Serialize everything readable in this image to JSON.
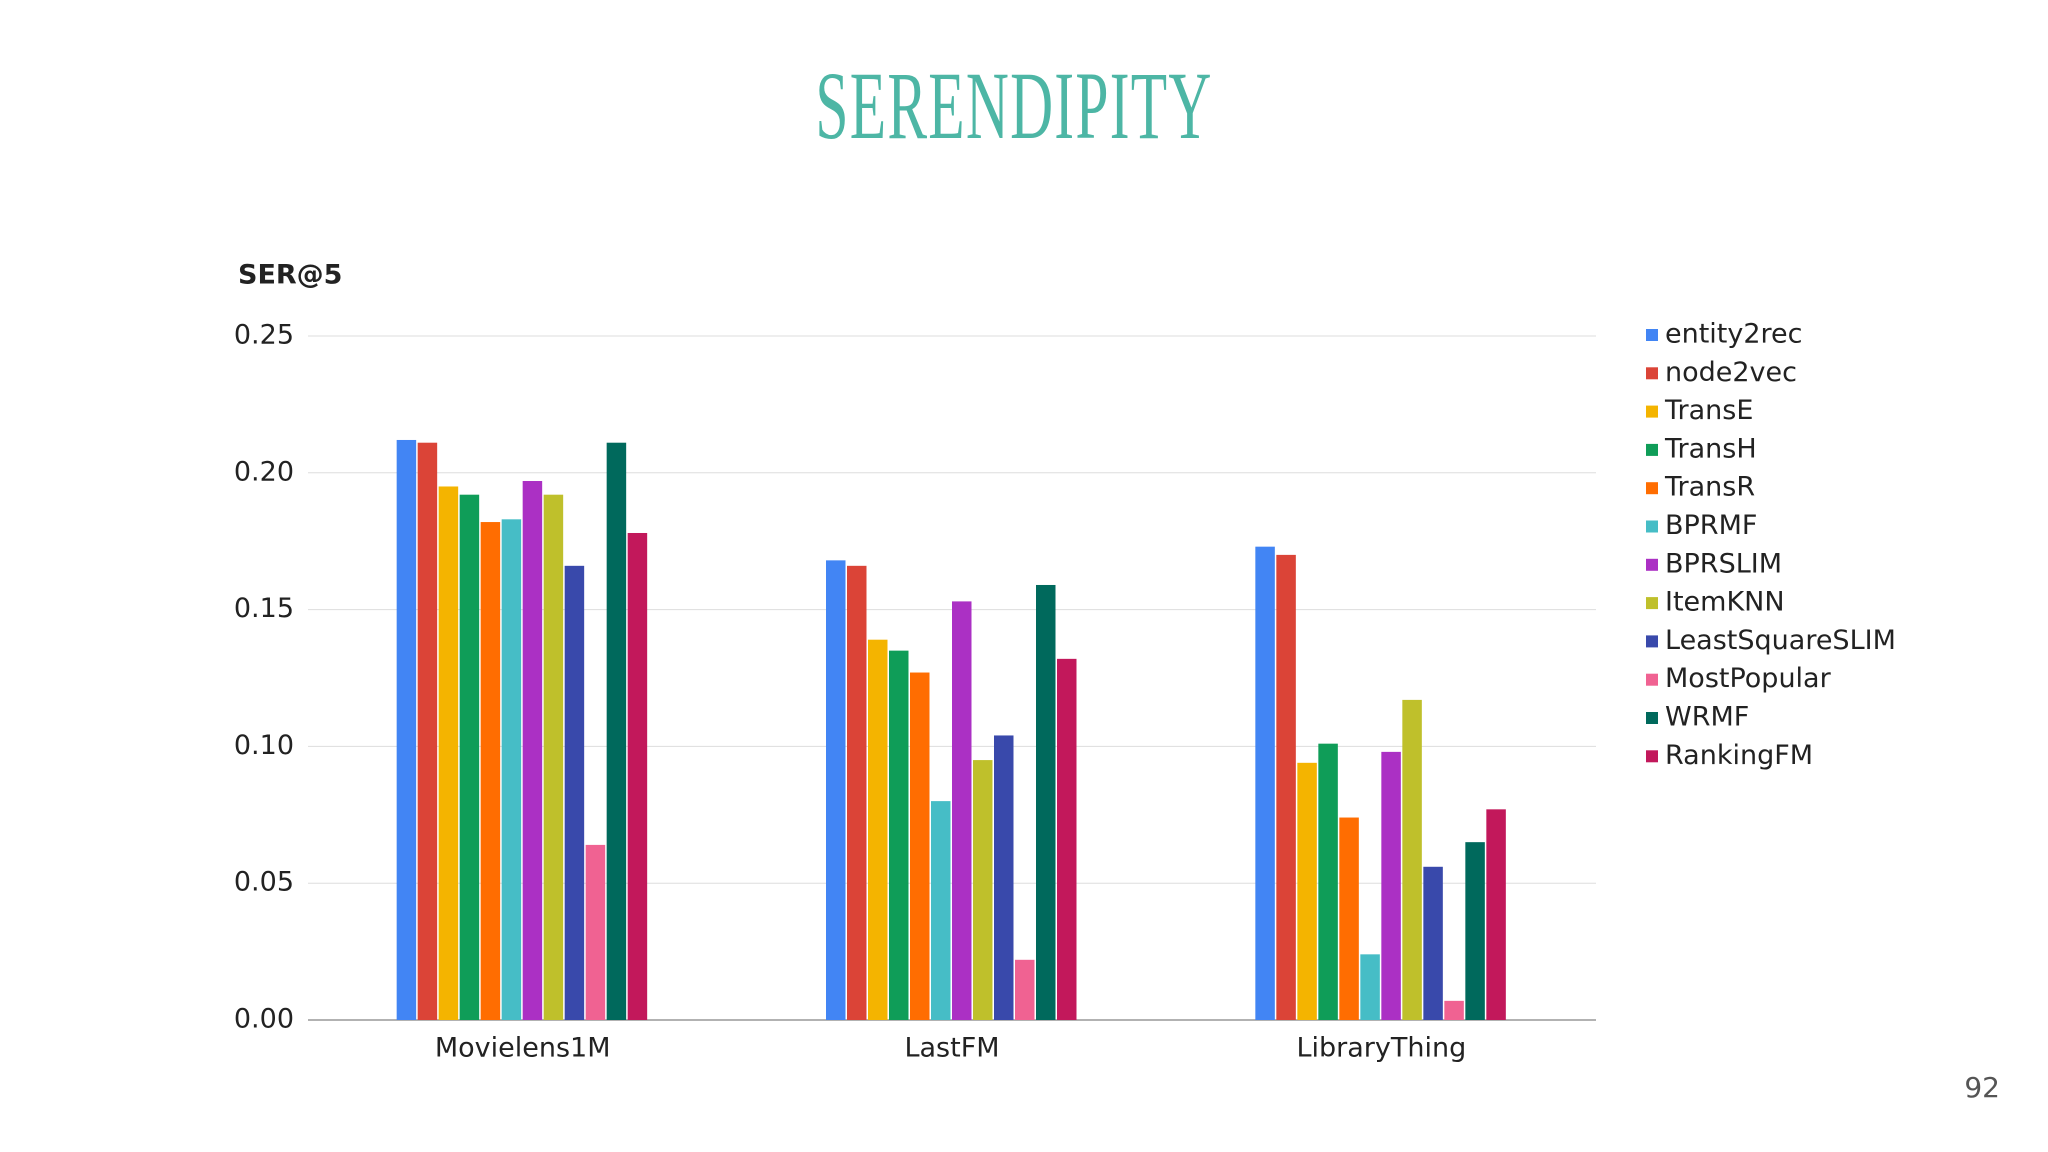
{
  "chart_data": {
    "type": "bar",
    "title": "SERENDIPITY",
    "y_label": "SER@5",
    "categories": [
      "Movielens1M",
      "LastFM",
      "LibraryThing"
    ],
    "series": [
      {
        "name": "entity2rec",
        "color": "#4285f4",
        "values": [
          0.212,
          0.168,
          0.173
        ]
      },
      {
        "name": "node2vec",
        "color": "#db4437",
        "values": [
          0.211,
          0.166,
          0.17
        ]
      },
      {
        "name": "TransE",
        "color": "#f4b400",
        "values": [
          0.195,
          0.139,
          0.094
        ]
      },
      {
        "name": "TransH",
        "color": "#0f9d58",
        "values": [
          0.192,
          0.135,
          0.101
        ]
      },
      {
        "name": "TransR",
        "color": "#ff6d01",
        "values": [
          0.182,
          0.127,
          0.074
        ]
      },
      {
        "name": "BPRMF",
        "color": "#46bdc6",
        "values": [
          0.183,
          0.08,
          0.024
        ]
      },
      {
        "name": "BPRSLIM",
        "color": "#ab30c4",
        "values": [
          0.197,
          0.153,
          0.098
        ]
      },
      {
        "name": "ItemKNN",
        "color": "#bfc02b",
        "values": [
          0.192,
          0.095,
          0.117
        ]
      },
      {
        "name": "LeastSquareSLIM",
        "color": "#3949ab",
        "values": [
          0.166,
          0.104,
          0.056
        ]
      },
      {
        "name": "MostPopular",
        "color": "#f06292",
        "values": [
          0.064,
          0.022,
          0.007
        ]
      },
      {
        "name": "WRMF",
        "color": "#00695c",
        "values": [
          0.211,
          0.159,
          0.065
        ]
      },
      {
        "name": "RankingFM",
        "color": "#c2185b",
        "values": [
          0.178,
          0.132,
          0.077
        ]
      }
    ],
    "ylim": [
      0,
      0.25
    ],
    "yticks": [
      {
        "value": 0,
        "label": "0.00"
      },
      {
        "value": 0.05,
        "label": "0.05"
      },
      {
        "value": 0.1,
        "label": "0.10"
      },
      {
        "value": 0.15,
        "label": "0.15"
      },
      {
        "value": 0.2,
        "label": "0.20"
      },
      {
        "value": 0.25,
        "label": "0.25"
      }
    ],
    "grid": true,
    "legend": "right"
  },
  "page_number": "92"
}
